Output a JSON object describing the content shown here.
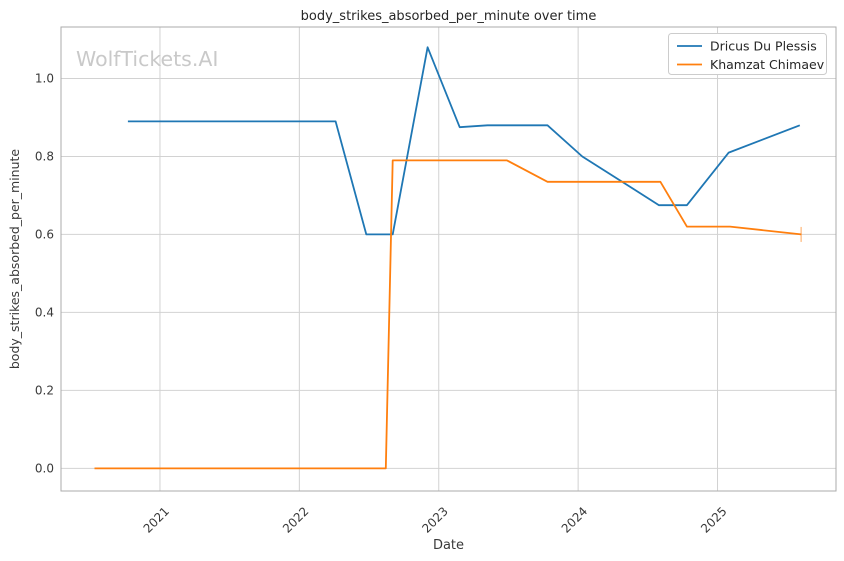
{
  "watermark": {
    "text": "WolfTickets.AI",
    "color": "#c9c9c9"
  },
  "colors": {
    "grid": "#d2d2d2",
    "spine": "#ababab",
    "tick_text": "#3a3a3a",
    "label_text": "#3a3a3a",
    "title_text": "#262626",
    "legend_border": "#cccccc",
    "legend_text": "#262626",
    "background": "#ffffff"
  },
  "chart_data": {
    "type": "line",
    "title": "body_strikes_absorbed_per_minute over time",
    "xlabel": "Date",
    "ylabel": "body_strikes_absorbed_per_minute",
    "xlim": [
      2020.29,
      2025.85
    ],
    "ylim": [
      -0.058,
      1.132
    ],
    "xticks": [
      2021,
      2022,
      2023,
      2024,
      2025
    ],
    "yticks": [
      0.0,
      0.2,
      0.4,
      0.6,
      0.8,
      1.0
    ],
    "grid": true,
    "legend_position": "upper right",
    "series": [
      {
        "name": "Dricus Du Plessis",
        "color": "#1f77b4",
        "end_marker": false,
        "points": [
          [
            2020.77,
            0.89
          ],
          [
            2022.26,
            0.89
          ],
          [
            2022.48,
            0.6
          ],
          [
            2022.67,
            0.6
          ],
          [
            2022.92,
            1.08
          ],
          [
            2023.15,
            0.875
          ],
          [
            2023.35,
            0.88
          ],
          [
            2023.78,
            0.88
          ],
          [
            2024.03,
            0.8
          ],
          [
            2024.58,
            0.675
          ],
          [
            2024.78,
            0.675
          ],
          [
            2025.08,
            0.81
          ],
          [
            2025.59,
            0.88
          ]
        ]
      },
      {
        "name": "Khamzat Chimaev",
        "color": "#ff7f0e",
        "end_marker": true,
        "points": [
          [
            2020.53,
            0.0
          ],
          [
            2022.62,
            0.0
          ],
          [
            2022.67,
            0.79
          ],
          [
            2023.49,
            0.79
          ],
          [
            2023.78,
            0.735
          ],
          [
            2024.59,
            0.735
          ],
          [
            2024.78,
            0.62
          ],
          [
            2025.09,
            0.62
          ],
          [
            2025.6,
            0.6
          ]
        ]
      }
    ]
  }
}
